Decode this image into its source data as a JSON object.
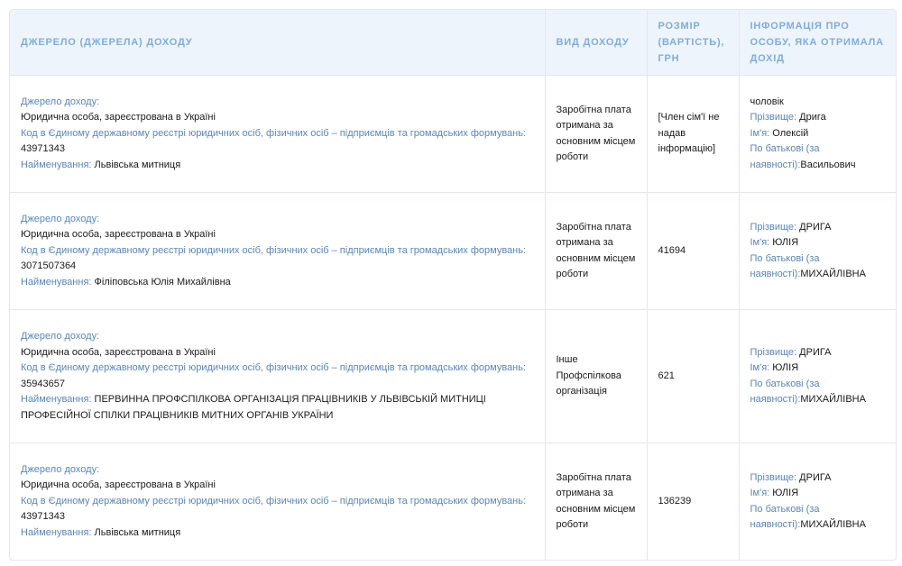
{
  "headers": [
    "ДЖЕРЕЛО (ДЖЕРЕЛА) ДОХОДУ",
    "ВИД ДОХОДУ",
    "РОЗМІР (ВАРТІСТЬ), ГРН",
    "ІНФОРМАЦІЯ ПРО ОСОБУ, ЯКА ОТРИМАЛА ДОХІД"
  ],
  "labels": {
    "source": "Джерело доходу:",
    "code": "Код в Єдиному державному реєстрі юридичних осіб, фізичних осіб – підприємців та громадських формувань:",
    "name": "Найменування:",
    "surname": "Прізвище:",
    "first": "Ім'я:",
    "patronymic": "По батькові (за наявності):"
  },
  "rows": [
    {
      "source_type": "Юридична особа, зареєстрована в Україні",
      "code": "43971343",
      "name": "Львівська митниця",
      "income_type": "Заробітна плата отримана за основним місцем роботи",
      "amount": "[Член сім'ї не надав інформацію]",
      "relation": "чоловік",
      "surname": "Дрига",
      "first": "Олексій",
      "patronymic": "Васильович"
    },
    {
      "source_type": "Юридична особа, зареєстрована в Україні",
      "code": "3071507364",
      "name": "Філіповська Юлія Михайлівна",
      "income_type": "Заробітна плата отримана за основним місцем роботи",
      "amount": "41694",
      "relation": "",
      "surname": "ДРИГА",
      "first": "ЮЛІЯ",
      "patronymic": "МИХАЙЛІВНА"
    },
    {
      "source_type": "Юридична особа, зареєстрована в Україні",
      "code": "35943657",
      "name": "ПЕРВИННА ПРОФСПІЛКОВА ОРГАНІЗАЦІЯ ПРАЦІВНИКІВ У ЛЬВІВСЬКІЙ МИТНИЦІ ПРОФЕСІЙНОЇ СПІЛКИ ПРАЦІВНИКІВ МИТНИХ ОРГАНІВ УКРАЇНИ",
      "income_type": "Інше Профспілкова організація",
      "amount": "621",
      "relation": "",
      "surname": "ДРИГА",
      "first": "ЮЛІЯ",
      "patronymic": "МИХАЙЛІВНА"
    },
    {
      "source_type": "Юридична особа, зареєстрована в Україні",
      "code": "43971343",
      "name": "Львівська митниця",
      "income_type": "Заробітна плата отримана за основним місцем роботи",
      "amount": "136239",
      "relation": "",
      "surname": "ДРИГА",
      "first": "ЮЛІЯ",
      "patronymic": "МИХАЙЛІВНА"
    }
  ],
  "colors": {
    "header_bg": "#eef4fb",
    "header_text": "#7eaedb",
    "label": "#5a86b5",
    "border": "#e3e8ee"
  }
}
